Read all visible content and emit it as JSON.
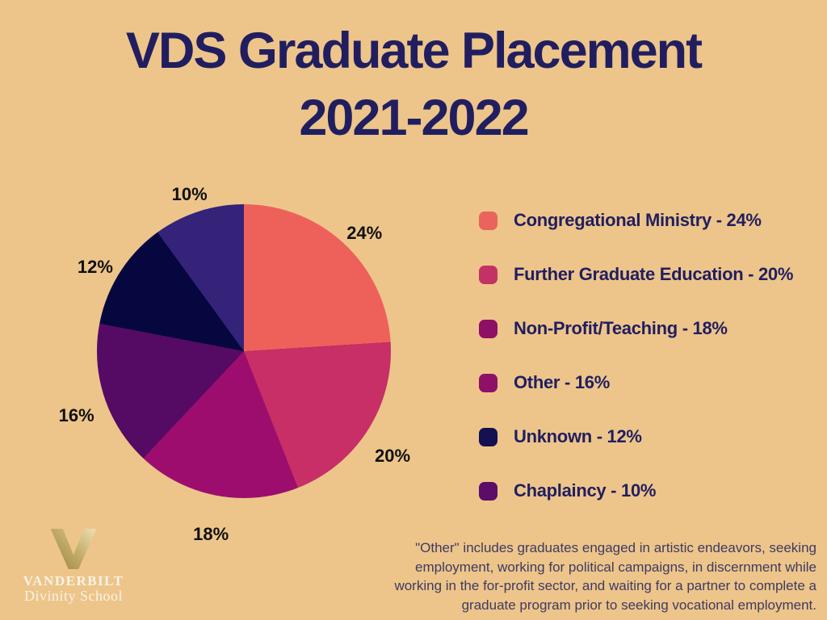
{
  "background_color": "#edc58a",
  "title": {
    "line1": "VDS Graduate Placement",
    "line2": "2021-2022",
    "color": "#211e60"
  },
  "chart_data": {
    "type": "pie",
    "title": "VDS Graduate Placement 2021-2022",
    "start_angle_deg": 0,
    "direction": "clockwise",
    "slice_label_format": "{value}%",
    "categories": [
      "Congregational Ministry",
      "Further Graduate Education",
      "Non-Profit/Teaching",
      "Other",
      "Unknown",
      "Chaplaincy"
    ],
    "values": [
      24,
      20,
      18,
      16,
      12,
      10
    ],
    "slices": [
      {
        "label": "Congregational Ministry",
        "value": 24,
        "color": "#ee615b"
      },
      {
        "label": "Further Graduate Education",
        "value": 20,
        "color": "#c72f66"
      },
      {
        "label": "Non-Profit/Teaching",
        "value": 18,
        "color": "#9d0d6e"
      },
      {
        "label": "Other",
        "value": 16,
        "color": "#550b63"
      },
      {
        "label": "Unknown",
        "value": 12,
        "color": "#070740"
      },
      {
        "label": "Chaplaincy",
        "value": 10,
        "color": "#342378"
      }
    ]
  },
  "legend": {
    "text_color": "#211e60",
    "items": [
      {
        "label": "Congregational Ministry - 24%",
        "swatch_color": "#e8645c"
      },
      {
        "label": "Further Graduate Education - 20%",
        "swatch_color": "#c43263"
      },
      {
        "label": "Non-Profit/Teaching - 18%",
        "swatch_color": "#8e0f64"
      },
      {
        "label": "Other - 16%",
        "swatch_color": "#8d1168"
      },
      {
        "label": "Unknown - 12%",
        "swatch_color": "#141052"
      },
      {
        "label": "Chaplaincy - 10%",
        "swatch_color": "#5c0d68"
      }
    ]
  },
  "footnote": {
    "color": "#3e3a63",
    "lines": [
      "\"Other\" includes graduates engaged in artistic endeavors, seeking",
      "employment, working for political campaigns, in discernment while",
      "working in the for-profit sector, and waiting for a partner to complete a",
      "graduate program prior to seeking vocational employment."
    ]
  },
  "logo": {
    "monogram": "V",
    "wordmark": "VANDERBILT",
    "subtitle": "Divinity School",
    "text_color": "#f8f3e6",
    "gold_dark": "#9d8440",
    "gold_mid": "#c3ab6a",
    "gold_light": "#ecdcab"
  }
}
